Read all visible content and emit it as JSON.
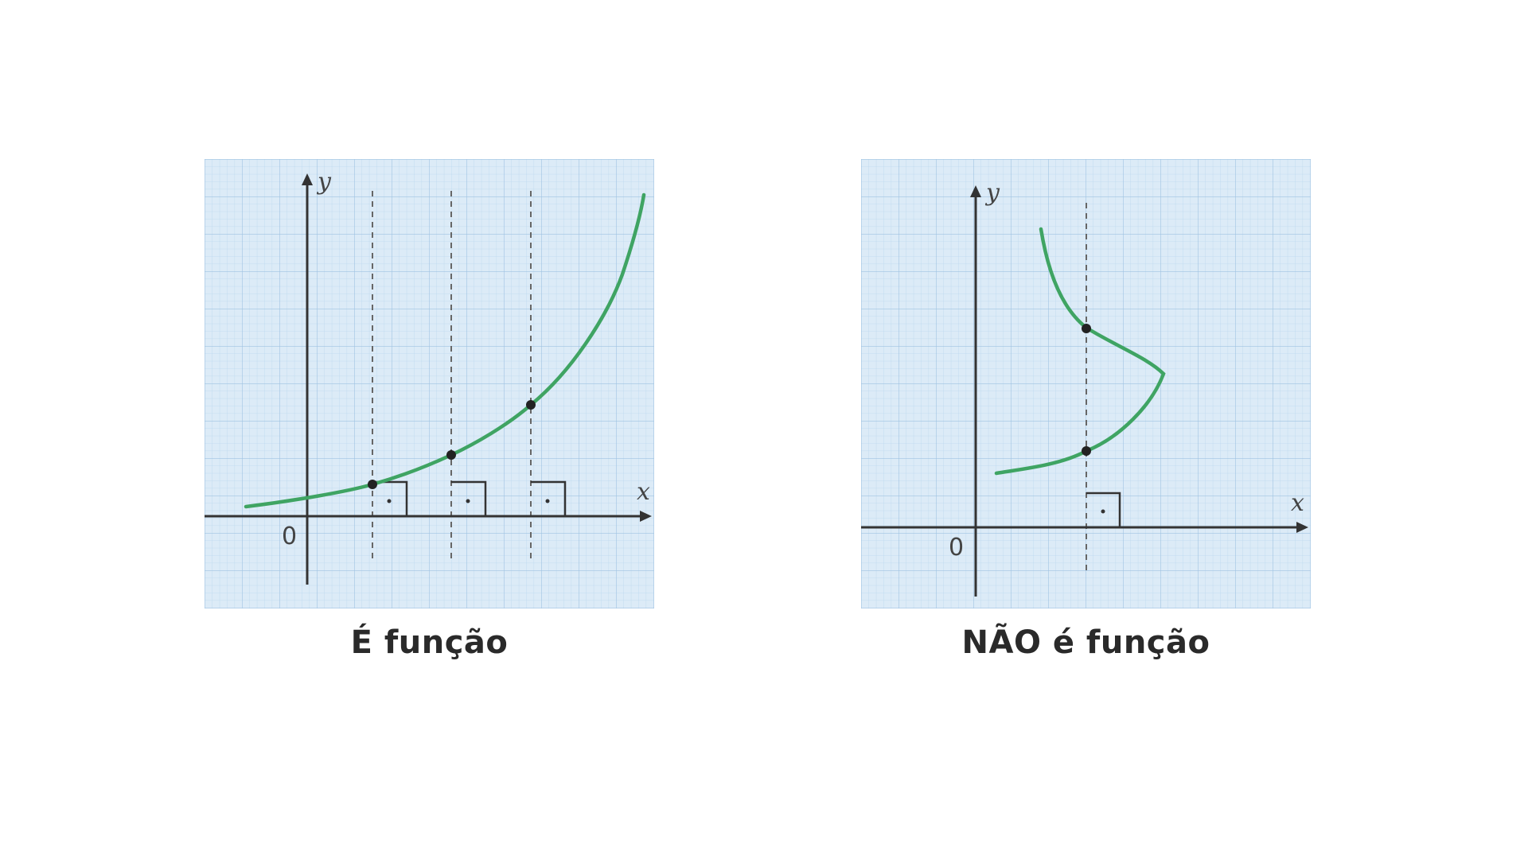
{
  "diagrams": [
    {
      "caption": "É função",
      "x_label": "x",
      "y_label": "y",
      "origin_label": "0"
    },
    {
      "caption": "NÃO é função",
      "x_label": "x",
      "y_label": "y",
      "origin_label": "0"
    }
  ],
  "colors": {
    "grid_background": "#dcebf7",
    "grid_line": "#a9cbe6",
    "curve": "#3fa463",
    "axis": "#333333"
  }
}
